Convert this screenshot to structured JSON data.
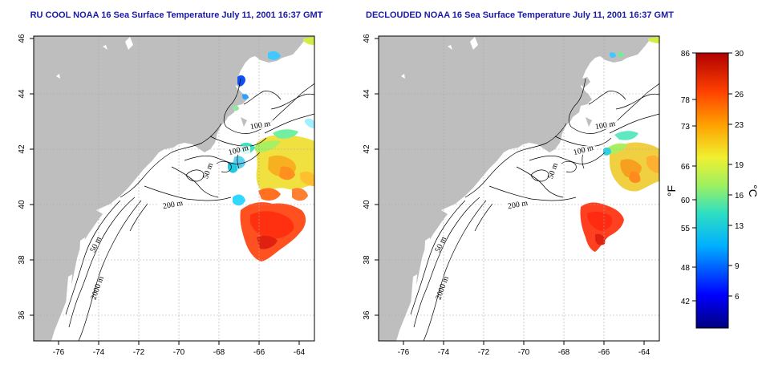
{
  "maps": [
    {
      "id": "rucool",
      "title": "RU COOL NOAA 16 Sea Surface Temperature July 11, 2001 16:37 GMT",
      "x_ticks": [
        "-76",
        "-74",
        "-72",
        "-70",
        "-68",
        "-66",
        "-64"
      ],
      "y_ticks": [
        "46",
        "44",
        "42",
        "40",
        "38",
        "36"
      ],
      "contour_labels": [
        "100 m",
        "100 m",
        "50 m",
        "200 m",
        "50 m",
        "2000 m"
      ]
    },
    {
      "id": "declouded",
      "title": "DECLOUDED NOAA 16 Sea Surface Temperature July 11, 2001 16:37 GMT",
      "x_ticks": [
        "-76",
        "-74",
        "-72",
        "-70",
        "-68",
        "-66",
        "-64"
      ],
      "y_ticks": [
        "46",
        "44",
        "42",
        "40",
        "38",
        "36"
      ],
      "contour_labels": [
        "100 m",
        "100 m",
        "50 m",
        "200 m",
        "50 m",
        "2000 m"
      ]
    }
  ],
  "map_extent": {
    "lon": [
      -77,
      -63
    ],
    "lat": [
      35,
      46
    ]
  },
  "colorbar": {
    "fahrenheit_ticks": [
      "86",
      "78",
      "73",
      "66",
      "60",
      "55",
      "48",
      "42"
    ],
    "celsius_ticks": [
      "30",
      "26",
      "23",
      "19",
      "16",
      "13",
      "9",
      "6"
    ],
    "fahrenheit_unit": "°F",
    "celsius_unit": "°C",
    "range_c": [
      3,
      30
    ]
  },
  "colors": {
    "land": "#bebebe",
    "title": "#1a1aa6",
    "grid": "#aaaaaa"
  }
}
